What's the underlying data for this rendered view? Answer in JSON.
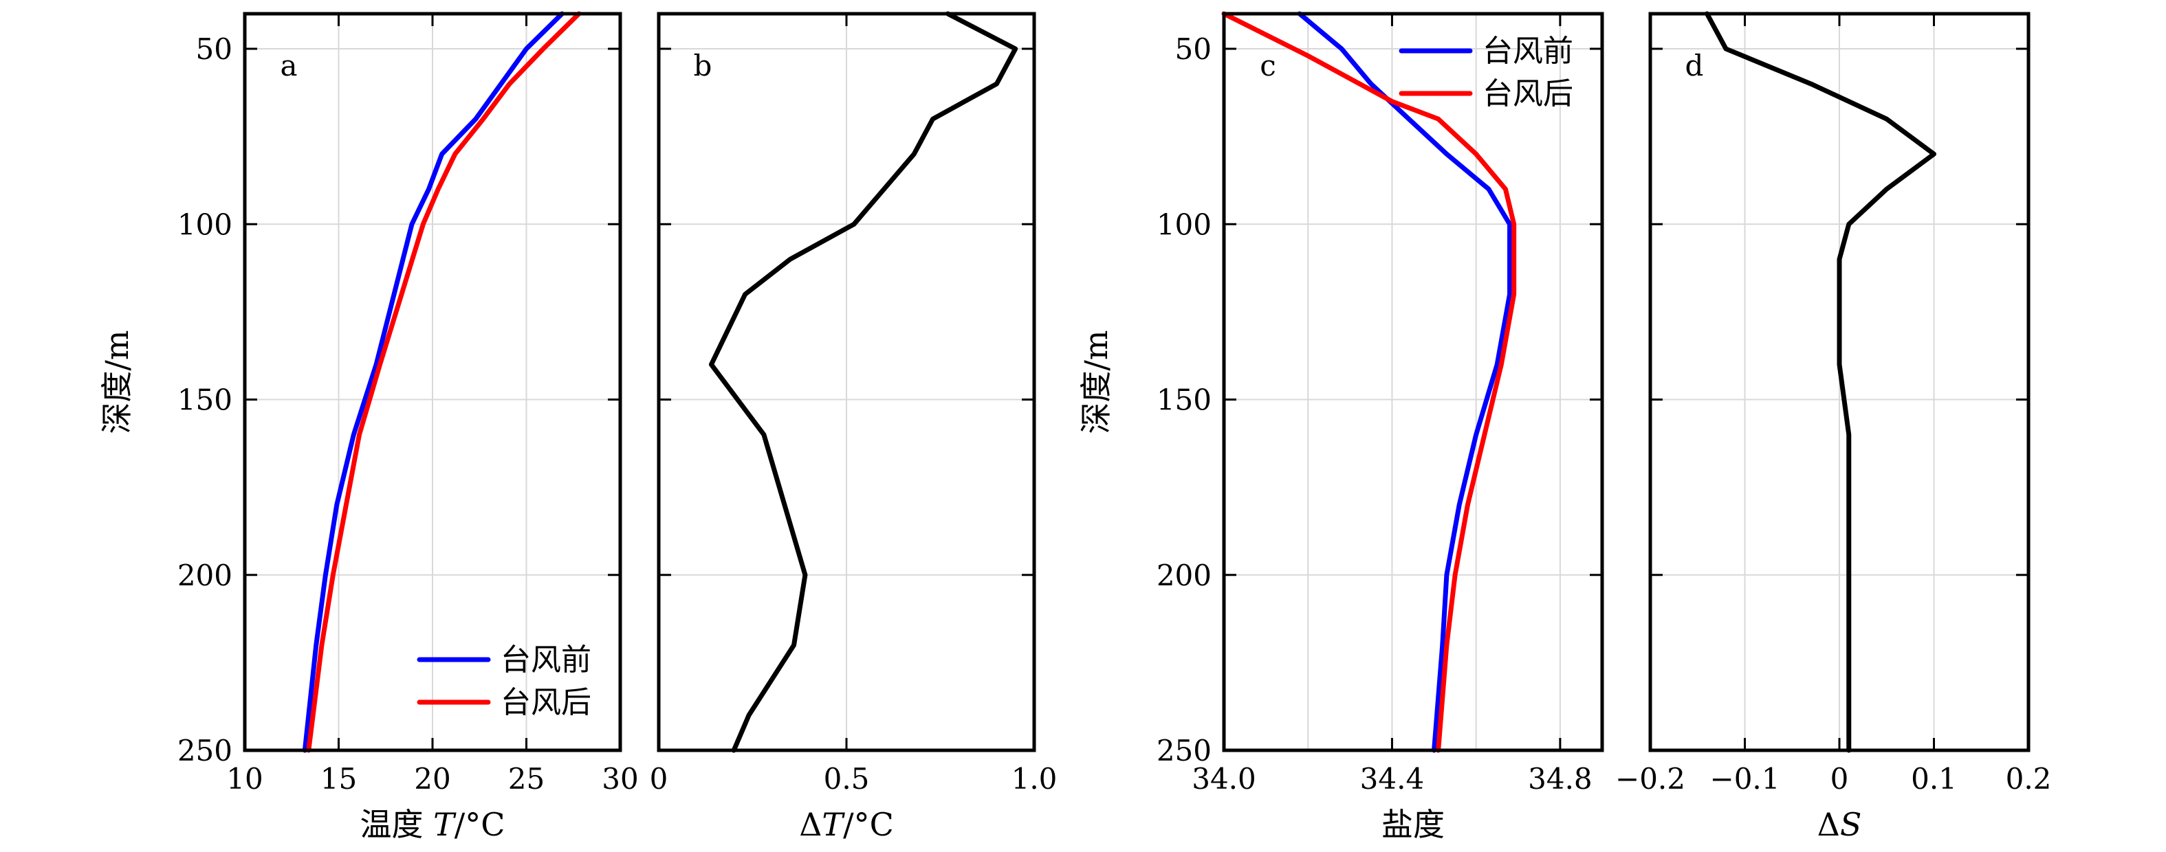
{
  "chart_data": [
    {
      "id": "a",
      "type": "line",
      "panel_label": "a",
      "xlabel": "温度 T/°C",
      "xlabel_parts": [
        "温度 ",
        "T",
        "/°C"
      ],
      "ylabel": "深度/m",
      "xlim": [
        10,
        30
      ],
      "ylim": [
        40,
        250
      ],
      "y_inverted": true,
      "xticks": [
        10,
        15,
        20,
        25,
        30
      ],
      "xtick_labels": [
        "10",
        "15",
        "20",
        "25",
        "30"
      ],
      "yticks": [
        50,
        100,
        150,
        200,
        250
      ],
      "ytick_labels": [
        "50",
        "100",
        "150",
        "200",
        "250"
      ],
      "grid": true,
      "legend": {
        "placement": "bottom-right",
        "entries": [
          "台风前",
          "台风后"
        ]
      },
      "series": [
        {
          "name": "台风前",
          "color": "#0000ff",
          "points": [
            [
              26.9,
              40
            ],
            [
              25.0,
              50
            ],
            [
              22.3,
              70
            ],
            [
              20.5,
              80
            ],
            [
              19.8,
              90
            ],
            [
              18.9,
              100
            ],
            [
              17.0,
              140
            ],
            [
              15.8,
              160
            ],
            [
              14.9,
              180
            ],
            [
              14.3,
              200
            ],
            [
              13.8,
              220
            ],
            [
              13.2,
              250
            ]
          ]
        },
        {
          "name": "台风后",
          "color": "#ff0000",
          "points": [
            [
              27.8,
              40
            ],
            [
              25.9,
              50
            ],
            [
              24.1,
              60
            ],
            [
              22.7,
              70
            ],
            [
              21.2,
              80
            ],
            [
              20.3,
              90
            ],
            [
              19.5,
              100
            ],
            [
              17.2,
              140
            ],
            [
              16.1,
              160
            ],
            [
              15.4,
              180
            ],
            [
              14.7,
              200
            ],
            [
              14.1,
              220
            ],
            [
              13.4,
              250
            ]
          ]
        }
      ]
    },
    {
      "id": "b",
      "type": "line",
      "panel_label": "b",
      "xlabel": "ΔT/°C",
      "xlabel_parts": [
        "Δ",
        "T",
        "/°C"
      ],
      "ylabel": "",
      "xlim": [
        0,
        1.0
      ],
      "ylim": [
        40,
        250
      ],
      "y_inverted": true,
      "xticks": [
        0,
        0.5,
        1.0
      ],
      "xtick_labels": [
        "0",
        "0.5",
        "1.0"
      ],
      "yticks": [
        50,
        100,
        150,
        200,
        250
      ],
      "ytick_labels": [],
      "grid": true,
      "series": [
        {
          "name": "",
          "color": "#000000",
          "points": [
            [
              0.77,
              40
            ],
            [
              0.95,
              50
            ],
            [
              0.9,
              60
            ],
            [
              0.73,
              70
            ],
            [
              0.68,
              80
            ],
            [
              0.6,
              90
            ],
            [
              0.52,
              100
            ],
            [
              0.35,
              110
            ],
            [
              0.23,
              120
            ],
            [
              0.14,
              140
            ],
            [
              0.28,
              160
            ],
            [
              0.39,
              200
            ],
            [
              0.36,
              220
            ],
            [
              0.24,
              240
            ],
            [
              0.2,
              250
            ]
          ]
        }
      ]
    },
    {
      "id": "c",
      "type": "line",
      "panel_label": "c",
      "xlabel": "盐度",
      "ylabel": "深度/m",
      "xlim": [
        34.0,
        34.9
      ],
      "ylim": [
        40,
        250
      ],
      "y_inverted": true,
      "xticks": [
        34.0,
        34.4,
        34.8
      ],
      "xtick_labels": [
        "34.0",
        "34.4",
        "34.8"
      ],
      "minor_xgrid": [
        34.2,
        34.6
      ],
      "yticks": [
        50,
        100,
        150,
        200,
        250
      ],
      "ytick_labels": [
        "50",
        "100",
        "150",
        "200",
        "250"
      ],
      "grid": true,
      "legend": {
        "placement": "top-right",
        "entries": [
          "台风前",
          "台风后"
        ]
      },
      "series": [
        {
          "name": "台风前",
          "color": "#0000ff",
          "points": [
            [
              34.18,
              40
            ],
            [
              34.28,
              50
            ],
            [
              34.35,
              60
            ],
            [
              34.44,
              70
            ],
            [
              34.53,
              80
            ],
            [
              34.63,
              90
            ],
            [
              34.68,
              100
            ],
            [
              34.68,
              120
            ],
            [
              34.65,
              140
            ],
            [
              34.6,
              160
            ],
            [
              34.56,
              180
            ],
            [
              34.53,
              200
            ],
            [
              34.52,
              220
            ],
            [
              34.5,
              250
            ]
          ]
        },
        {
          "name": "台风后",
          "color": "#ff0000",
          "points": [
            [
              34.0,
              40
            ],
            [
              34.2,
              52
            ],
            [
              34.4,
              65
            ],
            [
              34.51,
              70
            ],
            [
              34.6,
              80
            ],
            [
              34.67,
              90
            ],
            [
              34.69,
              100
            ],
            [
              34.69,
              120
            ],
            [
              34.66,
              140
            ],
            [
              34.62,
              160
            ],
            [
              34.58,
              180
            ],
            [
              34.55,
              200
            ],
            [
              34.53,
              220
            ],
            [
              34.51,
              250
            ]
          ]
        }
      ]
    },
    {
      "id": "d",
      "type": "line",
      "panel_label": "d",
      "xlabel": "ΔS",
      "xlabel_parts": [
        "Δ",
        "S",
        ""
      ],
      "ylabel": "",
      "xlim": [
        -0.2,
        0.2
      ],
      "ylim": [
        40,
        250
      ],
      "y_inverted": true,
      "xticks": [
        -0.2,
        -0.1,
        0,
        0.1,
        0.2
      ],
      "xtick_labels": [
        "−0.2",
        "−0.1",
        "0",
        "0.1",
        "0.2"
      ],
      "yticks": [
        50,
        100,
        150,
        200,
        250
      ],
      "ytick_labels": [],
      "grid": true,
      "series": [
        {
          "name": "",
          "color": "#000000",
          "points": [
            [
              -0.14,
              40
            ],
            [
              -0.12,
              50
            ],
            [
              -0.03,
              60
            ],
            [
              0.05,
              70
            ],
            [
              0.1,
              80
            ],
            [
              0.05,
              90
            ],
            [
              0.01,
              100
            ],
            [
              0.0,
              110
            ],
            [
              0.0,
              130
            ],
            [
              -0.0,
              140
            ],
            [
              0.01,
              160
            ],
            [
              0.01,
              180
            ],
            [
              0.01,
              200
            ],
            [
              0.01,
              220
            ],
            [
              0.01,
              240
            ],
            [
              0.01,
              250
            ]
          ]
        }
      ]
    }
  ]
}
